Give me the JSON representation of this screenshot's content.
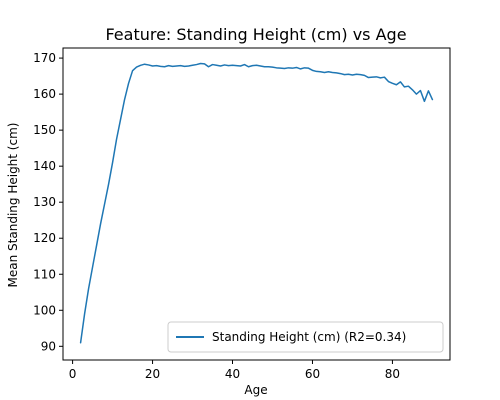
{
  "chart_data": {
    "type": "line",
    "title": "Feature: Standing Height (cm) vs Age",
    "xlabel": "Age",
    "ylabel": "Mean Standing Height (cm)",
    "xlim": [
      -2.4,
      94.4
    ],
    "ylim": [
      86.2,
      172.8
    ],
    "xticks": [
      0,
      20,
      40,
      60,
      80
    ],
    "yticks": [
      90,
      100,
      110,
      120,
      130,
      140,
      150,
      160,
      170
    ],
    "grid": false,
    "legend_position": "lower-right",
    "series": [
      {
        "name": "Standing Height (cm) (R2=0.34)",
        "color": "#1f77b4",
        "x": [
          2,
          3,
          4,
          5,
          6,
          7,
          8,
          9,
          10,
          11,
          12,
          13,
          14,
          15,
          16,
          17,
          18,
          19,
          20,
          21,
          22,
          23,
          24,
          25,
          26,
          27,
          28,
          29,
          30,
          31,
          32,
          33,
          34,
          35,
          36,
          37,
          38,
          39,
          40,
          41,
          42,
          43,
          44,
          45,
          46,
          47,
          48,
          49,
          50,
          51,
          52,
          53,
          54,
          55,
          56,
          57,
          58,
          59,
          60,
          61,
          62,
          63,
          64,
          65,
          66,
          67,
          68,
          69,
          70,
          71,
          72,
          73,
          74,
          75,
          76,
          77,
          78,
          79,
          80,
          81,
          82,
          83,
          84,
          85,
          86,
          87,
          88,
          89,
          90
        ],
        "y": [
          91,
          99,
          106,
          112,
          118,
          124,
          129.5,
          135,
          141,
          147.5,
          153,
          158.5,
          163,
          166.5,
          167.5,
          168,
          168.3,
          168.1,
          167.8,
          167.9,
          167.7,
          167.6,
          167.9,
          167.7,
          167.8,
          167.9,
          167.7,
          167.8,
          168.0,
          168.2,
          168.5,
          168.4,
          167.6,
          168.2,
          168.0,
          167.8,
          168.1,
          167.9,
          168.0,
          167.9,
          167.8,
          168.2,
          167.6,
          167.9,
          168.0,
          167.8,
          167.6,
          167.6,
          167.5,
          167.3,
          167.2,
          167.1,
          167.3,
          167.2,
          167.4,
          167.0,
          167.3,
          167.2,
          166.6,
          166.3,
          166.2,
          166.0,
          166.2,
          166.0,
          165.9,
          165.7,
          165.4,
          165.5,
          165.3,
          165.5,
          165.4,
          165.2,
          164.6,
          164.7,
          164.8,
          164.5,
          164.7,
          163.5,
          163.0,
          162.6,
          163.4,
          162.0,
          162.2,
          161.2,
          160.0,
          161.0,
          158.0,
          160.9,
          158.5
        ]
      }
    ]
  }
}
